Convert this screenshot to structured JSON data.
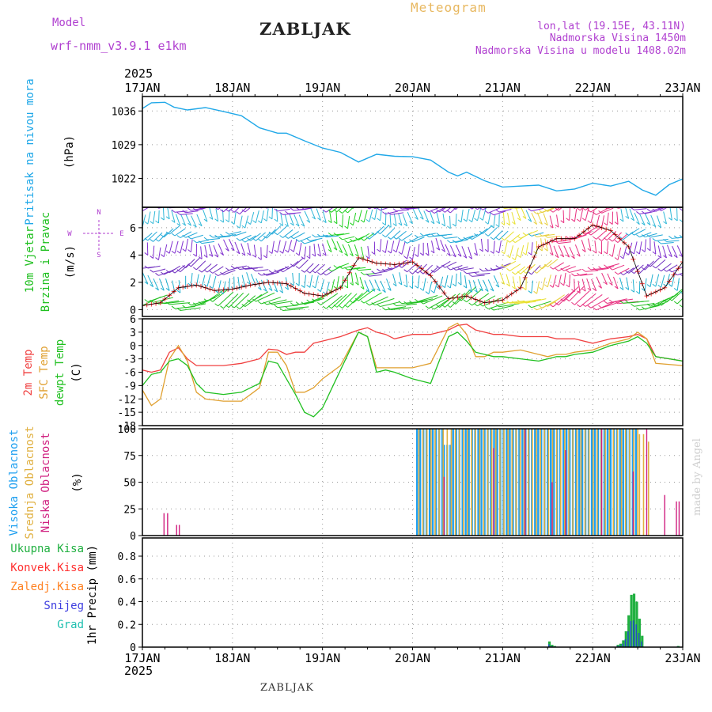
{
  "header": {
    "model_label": "Model",
    "model_name": "wrf-nmm_v3.9.1 e1km",
    "station": "ZABLJAK",
    "meteogram": "Meteogram",
    "lonlat": "lon,lat (19.15E, 43.11N)",
    "altitude": "Nadmorska Visina 1450m",
    "altitude_model": "Nadmorska Visina u modelu 1408.02m",
    "year": "2025",
    "footer_station": "ZABLJAK",
    "made_by": "made by Angel"
  },
  "colors": {
    "pressure": "#20a8e8",
    "wind_speed": "#ff3333",
    "t2m": "#f04040",
    "tsfc": "#e0a030",
    "dewpt": "#20c020",
    "cloud_high": "#20a0f0",
    "cloud_mid": "#e0b040",
    "cloud_low": "#d02080",
    "precip_total": "#20b040",
    "precip_conv": "#ff3030",
    "precip_ice": "#ff8020",
    "precip_snow": "#4040e0",
    "precip_hail": "#20c0b0"
  },
  "chart_data": [
    {
      "type": "line",
      "panel": "pressure",
      "ylabel_main": "Pritisak na nivou mora",
      "ylabel_unit": "(hPa)",
      "yticks": [
        1022,
        1029,
        1036
      ],
      "ylim": [
        1016,
        1039
      ],
      "x_days": [
        0.0,
        0.1,
        0.25,
        0.35,
        0.5,
        0.7,
        0.9,
        1.1,
        1.3,
        1.5,
        1.6,
        1.8,
        2.0,
        2.2,
        2.4,
        2.6,
        2.8,
        3.0,
        3.2,
        3.4,
        3.5,
        3.6,
        3.8,
        4.0,
        4.2,
        4.4,
        4.6,
        4.8,
        5.0,
        5.2,
        5.4,
        5.55,
        5.7,
        5.85,
        6.0
      ],
      "values": [
        1036.5,
        1037.7,
        1037.8,
        1036.8,
        1036.2,
        1036.7,
        1035.9,
        1035.0,
        1032.5,
        1031.4,
        1031.4,
        1029.8,
        1028.3,
        1027.4,
        1025.4,
        1027.0,
        1026.6,
        1026.5,
        1025.8,
        1023.3,
        1022.5,
        1023.3,
        1021.5,
        1020.2,
        1020.4,
        1020.6,
        1019.4,
        1019.8,
        1021.0,
        1020.4,
        1021.4,
        1019.6,
        1018.5,
        1020.7,
        1021.9
      ],
      "series_name": "Pritisak na nivou mora"
    },
    {
      "type": "line",
      "panel": "wind",
      "ylabel_main": "10m Vjetar",
      "ylabel_sub": "Brzina i Pravac",
      "ylabel_unit": "(m/s)",
      "compass": [
        "N",
        "S",
        "W",
        "E"
      ],
      "yticks": [
        0,
        2,
        4,
        6
      ],
      "ylim": [
        -0.5,
        7.5
      ],
      "x_days": [
        0.0,
        0.2,
        0.4,
        0.6,
        0.8,
        1.0,
        1.2,
        1.4,
        1.6,
        1.8,
        2.0,
        2.2,
        2.4,
        2.6,
        2.8,
        3.0,
        3.2,
        3.4,
        3.6,
        3.8,
        4.0,
        4.2,
        4.4,
        4.6,
        4.8,
        5.0,
        5.2,
        5.4,
        5.6,
        5.8,
        6.0
      ],
      "values": [
        0.3,
        0.5,
        1.6,
        1.8,
        1.4,
        1.5,
        1.8,
        2.0,
        1.9,
        1.2,
        1.0,
        1.6,
        3.8,
        3.4,
        3.3,
        3.5,
        2.5,
        0.8,
        1.0,
        0.5,
        0.7,
        1.6,
        4.6,
        5.2,
        5.2,
        6.2,
        5.8,
        4.6,
        1.0,
        1.6,
        3.5
      ],
      "wind_levels": [
        0.3,
        1.5,
        2.8,
        4.0,
        5.2,
        6.3,
        7.3
      ]
    },
    {
      "type": "line",
      "panel": "temperature",
      "ylabel_main": "2m Temp",
      "ylabel_sub": "SFC Temp",
      "ylabel_sub2": "dewpt Temp",
      "ylabel_unit": "(C)",
      "yticks": [
        6,
        3,
        0,
        -3,
        -6,
        -9,
        -12,
        -15,
        -18
      ],
      "ylim": [
        -18,
        6
      ],
      "x_days": [
        0.0,
        0.1,
        0.2,
        0.3,
        0.4,
        0.5,
        0.6,
        0.7,
        0.9,
        1.1,
        1.3,
        1.4,
        1.5,
        1.6,
        1.7,
        1.8,
        1.9,
        2.0,
        2.2,
        2.4,
        2.5,
        2.6,
        2.7,
        2.8,
        3.0,
        3.2,
        3.4,
        3.5,
        3.6,
        3.7,
        3.8,
        3.9,
        4.0,
        4.2,
        4.4,
        4.5,
        4.6,
        4.7,
        4.8,
        5.0,
        5.2,
        5.4,
        5.5,
        5.6,
        5.7,
        6.0
      ],
      "series": [
        {
          "name": "2m Temp",
          "values": [
            -5.5,
            -6.0,
            -5.5,
            -1.5,
            -0.5,
            -3.0,
            -4.5,
            -4.5,
            -4.5,
            -4.0,
            -3.0,
            -0.8,
            -1.0,
            -2.0,
            -1.5,
            -1.5,
            0.5,
            1.0,
            2.0,
            3.5,
            4.0,
            3.0,
            2.5,
            1.5,
            2.5,
            2.5,
            3.5,
            4.5,
            4.8,
            3.5,
            3.0,
            2.5,
            2.5,
            2.0,
            2.0,
            2.0,
            1.5,
            1.5,
            1.5,
            0.5,
            1.5,
            2.0,
            2.5,
            1.5,
            -2.5,
            -3.5
          ]
        },
        {
          "name": "SFC Temp",
          "values": [
            -10.0,
            -13.5,
            -12.0,
            -3.0,
            0.0,
            -3.5,
            -10.5,
            -12.0,
            -12.5,
            -12.5,
            -9.5,
            -1.5,
            -1.5,
            -4.5,
            -10.5,
            -10.5,
            -9.5,
            -7.5,
            -4.5,
            3.0,
            2.0,
            -5.0,
            -5.0,
            -5.0,
            -5.0,
            -4.0,
            4.0,
            5.0,
            2.5,
            -2.5,
            -2.5,
            -1.5,
            -1.5,
            -1.0,
            -2.0,
            -2.5,
            -2.0,
            -2.0,
            -1.5,
            -1.0,
            0.5,
            1.5,
            3.0,
            1.5,
            -4.0,
            -4.5
          ]
        },
        {
          "name": "dewpt Temp",
          "values": [
            -9.0,
            -6.5,
            -6.0,
            -3.5,
            -3.0,
            -4.5,
            -8.5,
            -10.5,
            -11.0,
            -10.5,
            -8.5,
            -3.5,
            -4.0,
            -7.5,
            -11.0,
            -15.0,
            -16.0,
            -14.0,
            -5.5,
            3.0,
            2.0,
            -6.0,
            -5.5,
            -6.0,
            -7.5,
            -8.5,
            2.0,
            3.0,
            1.0,
            -1.5,
            -2.0,
            -2.5,
            -2.5,
            -3.0,
            -3.5,
            -3.0,
            -2.5,
            -2.5,
            -2.0,
            -1.5,
            0.0,
            1.0,
            2.0,
            0.5,
            -2.5,
            -3.5
          ]
        }
      ]
    },
    {
      "type": "bar",
      "panel": "clouds",
      "ylabel_main": "Visoka Oblacnost",
      "ylabel_sub": "Srednja Oblacnost",
      "ylabel_sub2": "Niska Oblacnost",
      "ylabel_unit": "(%)",
      "yticks": [
        0,
        25,
        50,
        75,
        100
      ],
      "ylim": [
        0,
        100
      ],
      "series": [
        {
          "name": "Visoka Oblacnost",
          "segments": [
            {
              "from": 3.05,
              "to": 3.35,
              "value": 100
            },
            {
              "from": 3.35,
              "to": 3.45,
              "value": 85
            },
            {
              "from": 3.45,
              "to": 5.5,
              "value": 100
            }
          ]
        },
        {
          "name": "Srednja Oblacnost",
          "segments": [
            {
              "from": 3.05,
              "to": 5.5,
              "value": 100
            },
            {
              "from": 5.5,
              "to": 5.6,
              "value": 95
            },
            {
              "from": 5.6,
              "to": 5.65,
              "value": 88
            }
          ]
        },
        {
          "name": "Niska Oblacnost",
          "points": [
            {
              "x": 0.24,
              "value": 21
            },
            {
              "x": 0.28,
              "value": 21
            },
            {
              "x": 0.38,
              "value": 10
            },
            {
              "x": 0.41,
              "value": 10
            },
            {
              "x": 3.35,
              "value": 55
            },
            {
              "x": 3.9,
              "value": 82
            },
            {
              "x": 4.25,
              "value": 100
            },
            {
              "x": 4.55,
              "value": 50
            },
            {
              "x": 4.7,
              "value": 80
            },
            {
              "x": 5.1,
              "value": 100
            },
            {
              "x": 5.45,
              "value": 60
            },
            {
              "x": 5.6,
              "value": 100
            },
            {
              "x": 5.8,
              "value": 38
            },
            {
              "x": 5.93,
              "value": 32
            },
            {
              "x": 5.96,
              "value": 32
            }
          ]
        }
      ]
    },
    {
      "type": "bar",
      "panel": "precip",
      "ylabel_main": "1hr Precip",
      "ylabel_unit": "(mm)",
      "legend": [
        "Ukupna Kisa",
        "Konvek.Kisa",
        "Zaledj.Kisa",
        "Snijeg",
        "Grad"
      ],
      "yticks": [
        0,
        0.2,
        0.4,
        0.6,
        0.8
      ],
      "ylim": [
        0,
        0.96
      ],
      "x_days": [
        4.52,
        4.55,
        4.58,
        5.28,
        5.31,
        5.34,
        5.37,
        5.4,
        5.43,
        5.46,
        5.49,
        5.52,
        5.55,
        5.95
      ],
      "values": [
        0.05,
        0.02,
        0.01,
        0.02,
        0.03,
        0.06,
        0.14,
        0.28,
        0.46,
        0.47,
        0.4,
        0.25,
        0.1,
        0.01
      ]
    }
  ],
  "xaxis": {
    "ticks": [
      "17JAN",
      "18JAN",
      "19JAN",
      "20JAN",
      "21JAN",
      "22JAN",
      "23JAN"
    ]
  }
}
